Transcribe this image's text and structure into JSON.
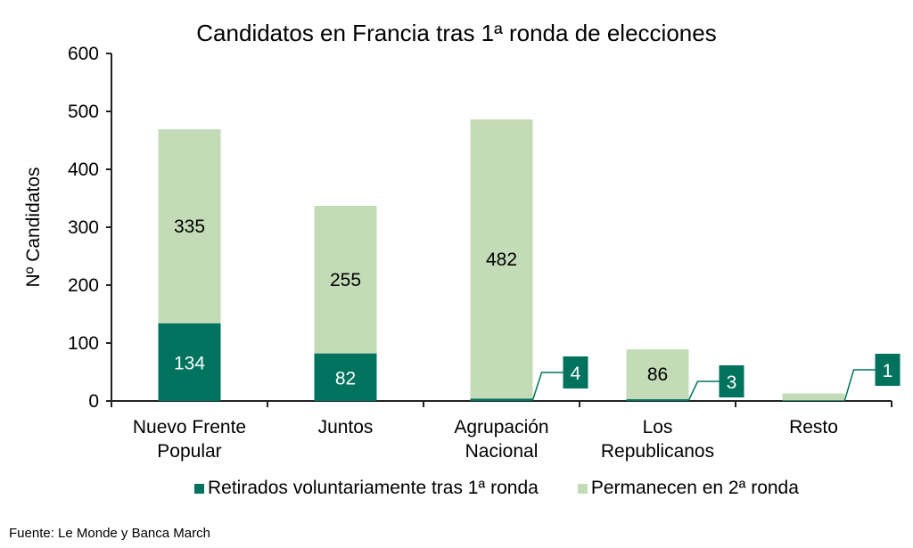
{
  "chart_data": {
    "type": "bar",
    "stacked": true,
    "title": "Candidatos en Francia tras 1ª ronda de elecciones",
    "xlabel": "",
    "ylabel": "Nº Candidatos",
    "ylim": [
      0,
      600
    ],
    "yticks": [
      0,
      100,
      200,
      300,
      400,
      500,
      600
    ],
    "grid": false,
    "categories": [
      [
        "Nuevo Frente",
        "Popular"
      ],
      [
        "Juntos"
      ],
      [
        "Agrupación",
        "Nacional"
      ],
      [
        "Los",
        "Republicanos"
      ],
      [
        "Resto"
      ]
    ],
    "series": [
      {
        "name": "Retirados voluntariamente tras 1ª ronda",
        "color": "#00735F",
        "values": [
          134,
          82,
          4,
          3,
          1
        ]
      },
      {
        "name": "Permanecen en 2ª ronda",
        "color": "#C4DBB7",
        "values": [
          335,
          255,
          482,
          86,
          12
        ]
      }
    ],
    "data_labels": {
      "retirados": [
        "134",
        "82",
        "4",
        "3",
        "1"
      ],
      "permanecen": [
        "335",
        "255",
        "482",
        "86",
        ""
      ]
    },
    "legend_position": "bottom"
  },
  "source": "Fuente: Le Monde y Banca March"
}
